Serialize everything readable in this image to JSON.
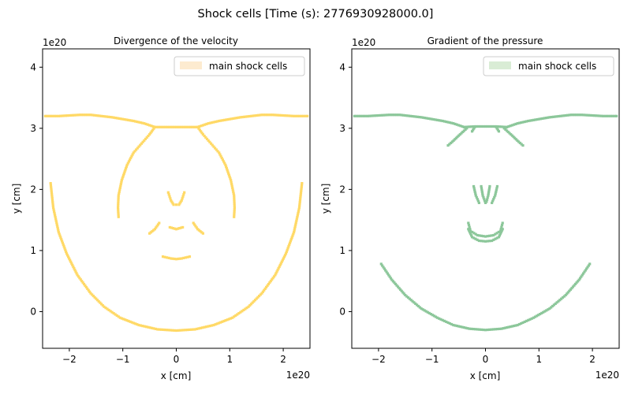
{
  "suptitle": "Shock cells [Time (s): 2776930928000.0]",
  "chart_data": [
    {
      "type": "scatter",
      "title": "Divergence of the velocity",
      "xlabel": "x [cm]",
      "ylabel": "y [cm]",
      "x_offset_text": "1e20",
      "y_offset_text": "1e20",
      "xlim": [
        -2.5,
        2.5
      ],
      "ylim": [
        -0.6,
        4.3
      ],
      "xticks": [
        -2,
        -1,
        0,
        1,
        2
      ],
      "yticks": [
        0,
        1,
        2,
        3,
        4
      ],
      "xtick_labels": [
        "−2",
        "−1",
        "0",
        "1",
        "2"
      ],
      "ytick_labels": [
        "0",
        "1",
        "2",
        "3",
        "4"
      ],
      "legend": {
        "label": "main shock cells",
        "position": "upper right"
      },
      "color": "#ffd966",
      "legend_color": "#fdebd0",
      "series": [
        {
          "points": [
            [
              -2.45,
              3.2
            ],
            [
              -2.2,
              3.2
            ],
            [
              -2.0,
              3.21
            ],
            [
              -1.8,
              3.22
            ],
            [
              -1.6,
              3.22
            ],
            [
              -1.4,
              3.2
            ],
            [
              -1.2,
              3.18
            ],
            [
              -1.0,
              3.15
            ],
            [
              -0.8,
              3.12
            ],
            [
              -0.6,
              3.08
            ],
            [
              -0.5,
              3.05
            ],
            [
              -0.4,
              3.02
            ]
          ]
        },
        {
          "points": [
            [
              -0.4,
              3.02
            ],
            [
              -0.2,
              3.02
            ],
            [
              0.0,
              3.02
            ],
            [
              0.2,
              3.02
            ],
            [
              0.4,
              3.02
            ]
          ]
        },
        {
          "points": [
            [
              0.4,
              3.02
            ],
            [
              0.5,
              3.05
            ],
            [
              0.6,
              3.08
            ],
            [
              0.8,
              3.12
            ],
            [
              1.0,
              3.15
            ],
            [
              1.2,
              3.18
            ],
            [
              1.4,
              3.2
            ],
            [
              1.6,
              3.22
            ],
            [
              1.8,
              3.22
            ],
            [
              2.0,
              3.21
            ],
            [
              2.2,
              3.2
            ],
            [
              2.45,
              3.2
            ]
          ]
        },
        {
          "points": [
            [
              -0.4,
              3.02
            ],
            [
              -0.5,
              2.9
            ],
            [
              -0.65,
              2.75
            ],
            [
              -0.8,
              2.6
            ],
            [
              -0.92,
              2.4
            ],
            [
              -1.02,
              2.15
            ],
            [
              -1.08,
              1.9
            ],
            [
              -1.09,
              1.7
            ],
            [
              -1.08,
              1.55
            ]
          ]
        },
        {
          "points": [
            [
              0.4,
              3.02
            ],
            [
              0.5,
              2.9
            ],
            [
              0.65,
              2.75
            ],
            [
              0.8,
              2.6
            ],
            [
              0.92,
              2.4
            ],
            [
              1.02,
              2.15
            ],
            [
              1.08,
              1.9
            ],
            [
              1.09,
              1.7
            ],
            [
              1.08,
              1.55
            ]
          ]
        },
        {
          "points": [
            [
              -2.35,
              2.1
            ],
            [
              -2.3,
              1.7
            ],
            [
              -2.2,
              1.3
            ],
            [
              -2.05,
              0.95
            ],
            [
              -1.85,
              0.6
            ],
            [
              -1.6,
              0.3
            ],
            [
              -1.35,
              0.08
            ],
            [
              -1.05,
              -0.1
            ],
            [
              -0.7,
              -0.22
            ],
            [
              -0.35,
              -0.29
            ],
            [
              0.0,
              -0.31
            ],
            [
              0.35,
              -0.29
            ],
            [
              0.7,
              -0.22
            ],
            [
              1.05,
              -0.1
            ],
            [
              1.35,
              0.08
            ],
            [
              1.6,
              0.3
            ],
            [
              1.85,
              0.6
            ],
            [
              2.05,
              0.95
            ],
            [
              2.2,
              1.3
            ],
            [
              2.3,
              1.7
            ],
            [
              2.35,
              2.1
            ]
          ]
        },
        {
          "points": [
            [
              -0.15,
              1.95
            ],
            [
              -0.1,
              1.82
            ],
            [
              -0.05,
              1.75
            ],
            [
              0.0,
              1.75
            ],
            [
              0.05,
              1.75
            ],
            [
              0.1,
              1.82
            ],
            [
              0.15,
              1.95
            ]
          ]
        },
        {
          "points": [
            [
              -0.5,
              1.28
            ],
            [
              -0.4,
              1.35
            ],
            [
              -0.32,
              1.45
            ]
          ]
        },
        {
          "points": [
            [
              0.32,
              1.45
            ],
            [
              0.4,
              1.35
            ],
            [
              0.5,
              1.28
            ]
          ]
        },
        {
          "points": [
            [
              -0.25,
              0.9
            ],
            [
              -0.1,
              0.87
            ],
            [
              0.0,
              0.86
            ],
            [
              0.1,
              0.87
            ],
            [
              0.25,
              0.9
            ]
          ]
        },
        {
          "points": [
            [
              -0.12,
              1.38
            ],
            [
              0.0,
              1.35
            ],
            [
              0.12,
              1.38
            ]
          ]
        }
      ]
    },
    {
      "type": "scatter",
      "title": "Gradient of the pressure",
      "xlabel": "x [cm]",
      "ylabel": "y [cm]",
      "x_offset_text": "1e20",
      "y_offset_text": "1e20",
      "xlim": [
        -2.5,
        2.5
      ],
      "ylim": [
        -0.6,
        4.3
      ],
      "xticks": [
        -2,
        -1,
        0,
        1,
        2
      ],
      "yticks": [
        0,
        1,
        2,
        3,
        4
      ],
      "xtick_labels": [
        "−2",
        "−1",
        "0",
        "1",
        "2"
      ],
      "ytick_labels": [
        "0",
        "1",
        "2",
        "3",
        "4"
      ],
      "legend": {
        "label": "main shock cells",
        "position": "upper right"
      },
      "color": "#8cc79a",
      "legend_color": "#d9ecd5",
      "series": [
        {
          "points": [
            [
              -2.45,
              3.2
            ],
            [
              -2.2,
              3.2
            ],
            [
              -2.0,
              3.21
            ],
            [
              -1.8,
              3.22
            ],
            [
              -1.6,
              3.22
            ],
            [
              -1.4,
              3.2
            ],
            [
              -1.2,
              3.18
            ],
            [
              -1.0,
              3.15
            ],
            [
              -0.8,
              3.12
            ],
            [
              -0.6,
              3.08
            ],
            [
              -0.5,
              3.05
            ],
            [
              -0.4,
              3.02
            ]
          ]
        },
        {
          "points": [
            [
              -0.4,
              3.02
            ],
            [
              -0.2,
              3.03
            ],
            [
              0.0,
              3.03
            ],
            [
              0.2,
              3.03
            ],
            [
              0.4,
              3.02
            ]
          ]
        },
        {
          "points": [
            [
              0.4,
              3.02
            ],
            [
              0.5,
              3.05
            ],
            [
              0.6,
              3.08
            ],
            [
              0.8,
              3.12
            ],
            [
              1.0,
              3.15
            ],
            [
              1.2,
              3.18
            ],
            [
              1.4,
              3.2
            ],
            [
              1.6,
              3.22
            ],
            [
              1.8,
              3.22
            ],
            [
              2.0,
              3.21
            ],
            [
              2.2,
              3.2
            ],
            [
              2.45,
              3.2
            ]
          ]
        },
        {
          "points": [
            [
              -0.35,
              3.0
            ],
            [
              -0.5,
              2.88
            ],
            [
              -0.62,
              2.78
            ],
            [
              -0.7,
              2.72
            ]
          ]
        },
        {
          "points": [
            [
              0.35,
              3.0
            ],
            [
              0.5,
              2.88
            ],
            [
              0.62,
              2.78
            ],
            [
              0.7,
              2.72
            ]
          ]
        },
        {
          "points": [
            [
              -0.2,
              3.02
            ],
            [
              -0.25,
              2.95
            ]
          ]
        },
        {
          "points": [
            [
              0.2,
              3.02
            ],
            [
              0.25,
              2.95
            ]
          ]
        },
        {
          "points": [
            [
              -1.95,
              0.78
            ],
            [
              -1.75,
              0.52
            ],
            [
              -1.5,
              0.27
            ],
            [
              -1.2,
              0.05
            ],
            [
              -0.9,
              -0.1
            ],
            [
              -0.6,
              -0.22
            ],
            [
              -0.3,
              -0.28
            ],
            [
              0.0,
              -0.3
            ],
            [
              0.3,
              -0.28
            ],
            [
              0.6,
              -0.22
            ],
            [
              0.9,
              -0.1
            ],
            [
              1.2,
              0.05
            ],
            [
              1.5,
              0.27
            ],
            [
              1.75,
              0.52
            ],
            [
              1.95,
              0.78
            ]
          ]
        },
        {
          "points": [
            [
              -0.22,
              2.05
            ],
            [
              -0.18,
              1.9
            ],
            [
              -0.12,
              1.78
            ]
          ]
        },
        {
          "points": [
            [
              -0.08,
              2.05
            ],
            [
              -0.05,
              1.9
            ],
            [
              0.0,
              1.78
            ]
          ]
        },
        {
          "points": [
            [
              0.08,
              2.05
            ],
            [
              0.05,
              1.9
            ],
            [
              0.02,
              1.8
            ]
          ]
        },
        {
          "points": [
            [
              0.22,
              2.05
            ],
            [
              0.18,
              1.9
            ],
            [
              0.12,
              1.78
            ]
          ]
        },
        {
          "points": [
            [
              -0.32,
              1.45
            ],
            [
              -0.28,
              1.32
            ],
            [
              -0.15,
              1.25
            ],
            [
              0.0,
              1.23
            ],
            [
              0.15,
              1.25
            ],
            [
              0.28,
              1.32
            ],
            [
              0.32,
              1.45
            ]
          ]
        },
        {
          "points": [
            [
              -0.32,
              1.35
            ],
            [
              -0.25,
              1.22
            ],
            [
              -0.12,
              1.16
            ],
            [
              0.0,
              1.15
            ],
            [
              0.12,
              1.16
            ],
            [
              0.25,
              1.22
            ],
            [
              0.32,
              1.35
            ]
          ]
        }
      ]
    }
  ]
}
